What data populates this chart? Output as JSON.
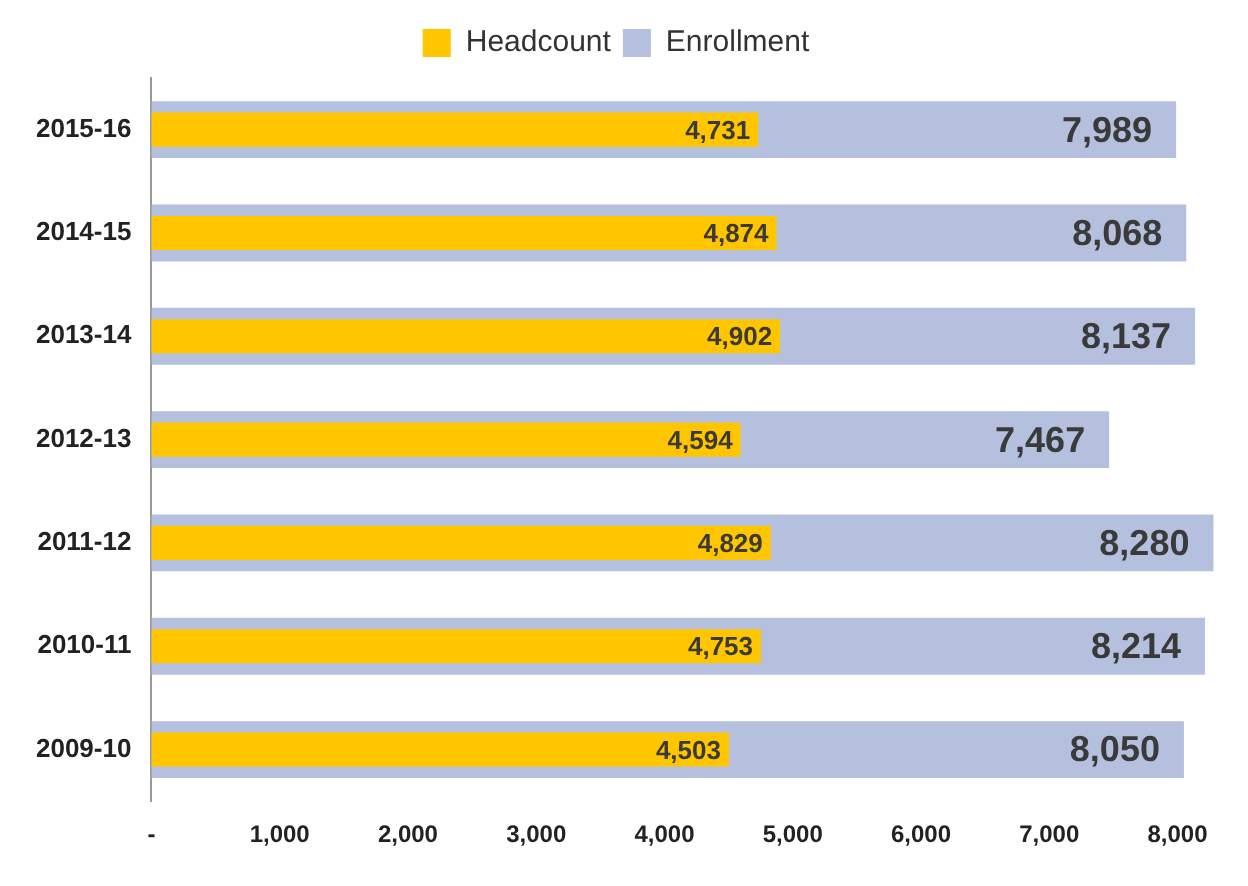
{
  "chart_data": {
    "type": "bar",
    "orientation": "horizontal",
    "categories": [
      "2015-16",
      "2014-15",
      "2013-14",
      "2012-13",
      "2011-12",
      "2010-11",
      "2009-10"
    ],
    "series": [
      {
        "name": "Enrollment",
        "color": "#b4c0de",
        "values": [
          7989,
          8068,
          8137,
          7467,
          8280,
          8214,
          8050
        ],
        "value_labels": [
          "7,989",
          "8,068",
          "8,137",
          "7,467",
          "8,280",
          "8,214",
          "8,050"
        ]
      },
      {
        "name": "Headcount",
        "color": "#ffc600",
        "values": [
          4731,
          4874,
          4902,
          4594,
          4829,
          4753,
          4503
        ],
        "value_labels": [
          "4,731",
          "4,874",
          "4,902",
          "4,594",
          "4,829",
          "4,753",
          "4,503"
        ]
      }
    ],
    "xlim": [
      0,
      8300
    ],
    "xticks": [
      {
        "value": 0,
        "label": "-"
      },
      {
        "value": 1000,
        "label": "1,000"
      },
      {
        "value": 2000,
        "label": "2,000"
      },
      {
        "value": 3000,
        "label": "3,000"
      },
      {
        "value": 4000,
        "label": "4,000"
      },
      {
        "value": 5000,
        "label": "5,000"
      },
      {
        "value": 6000,
        "label": "6,000"
      },
      {
        "value": 7000,
        "label": "7,000"
      },
      {
        "value": 8000,
        "label": "8,000"
      }
    ],
    "grid": false,
    "legend": "top"
  }
}
